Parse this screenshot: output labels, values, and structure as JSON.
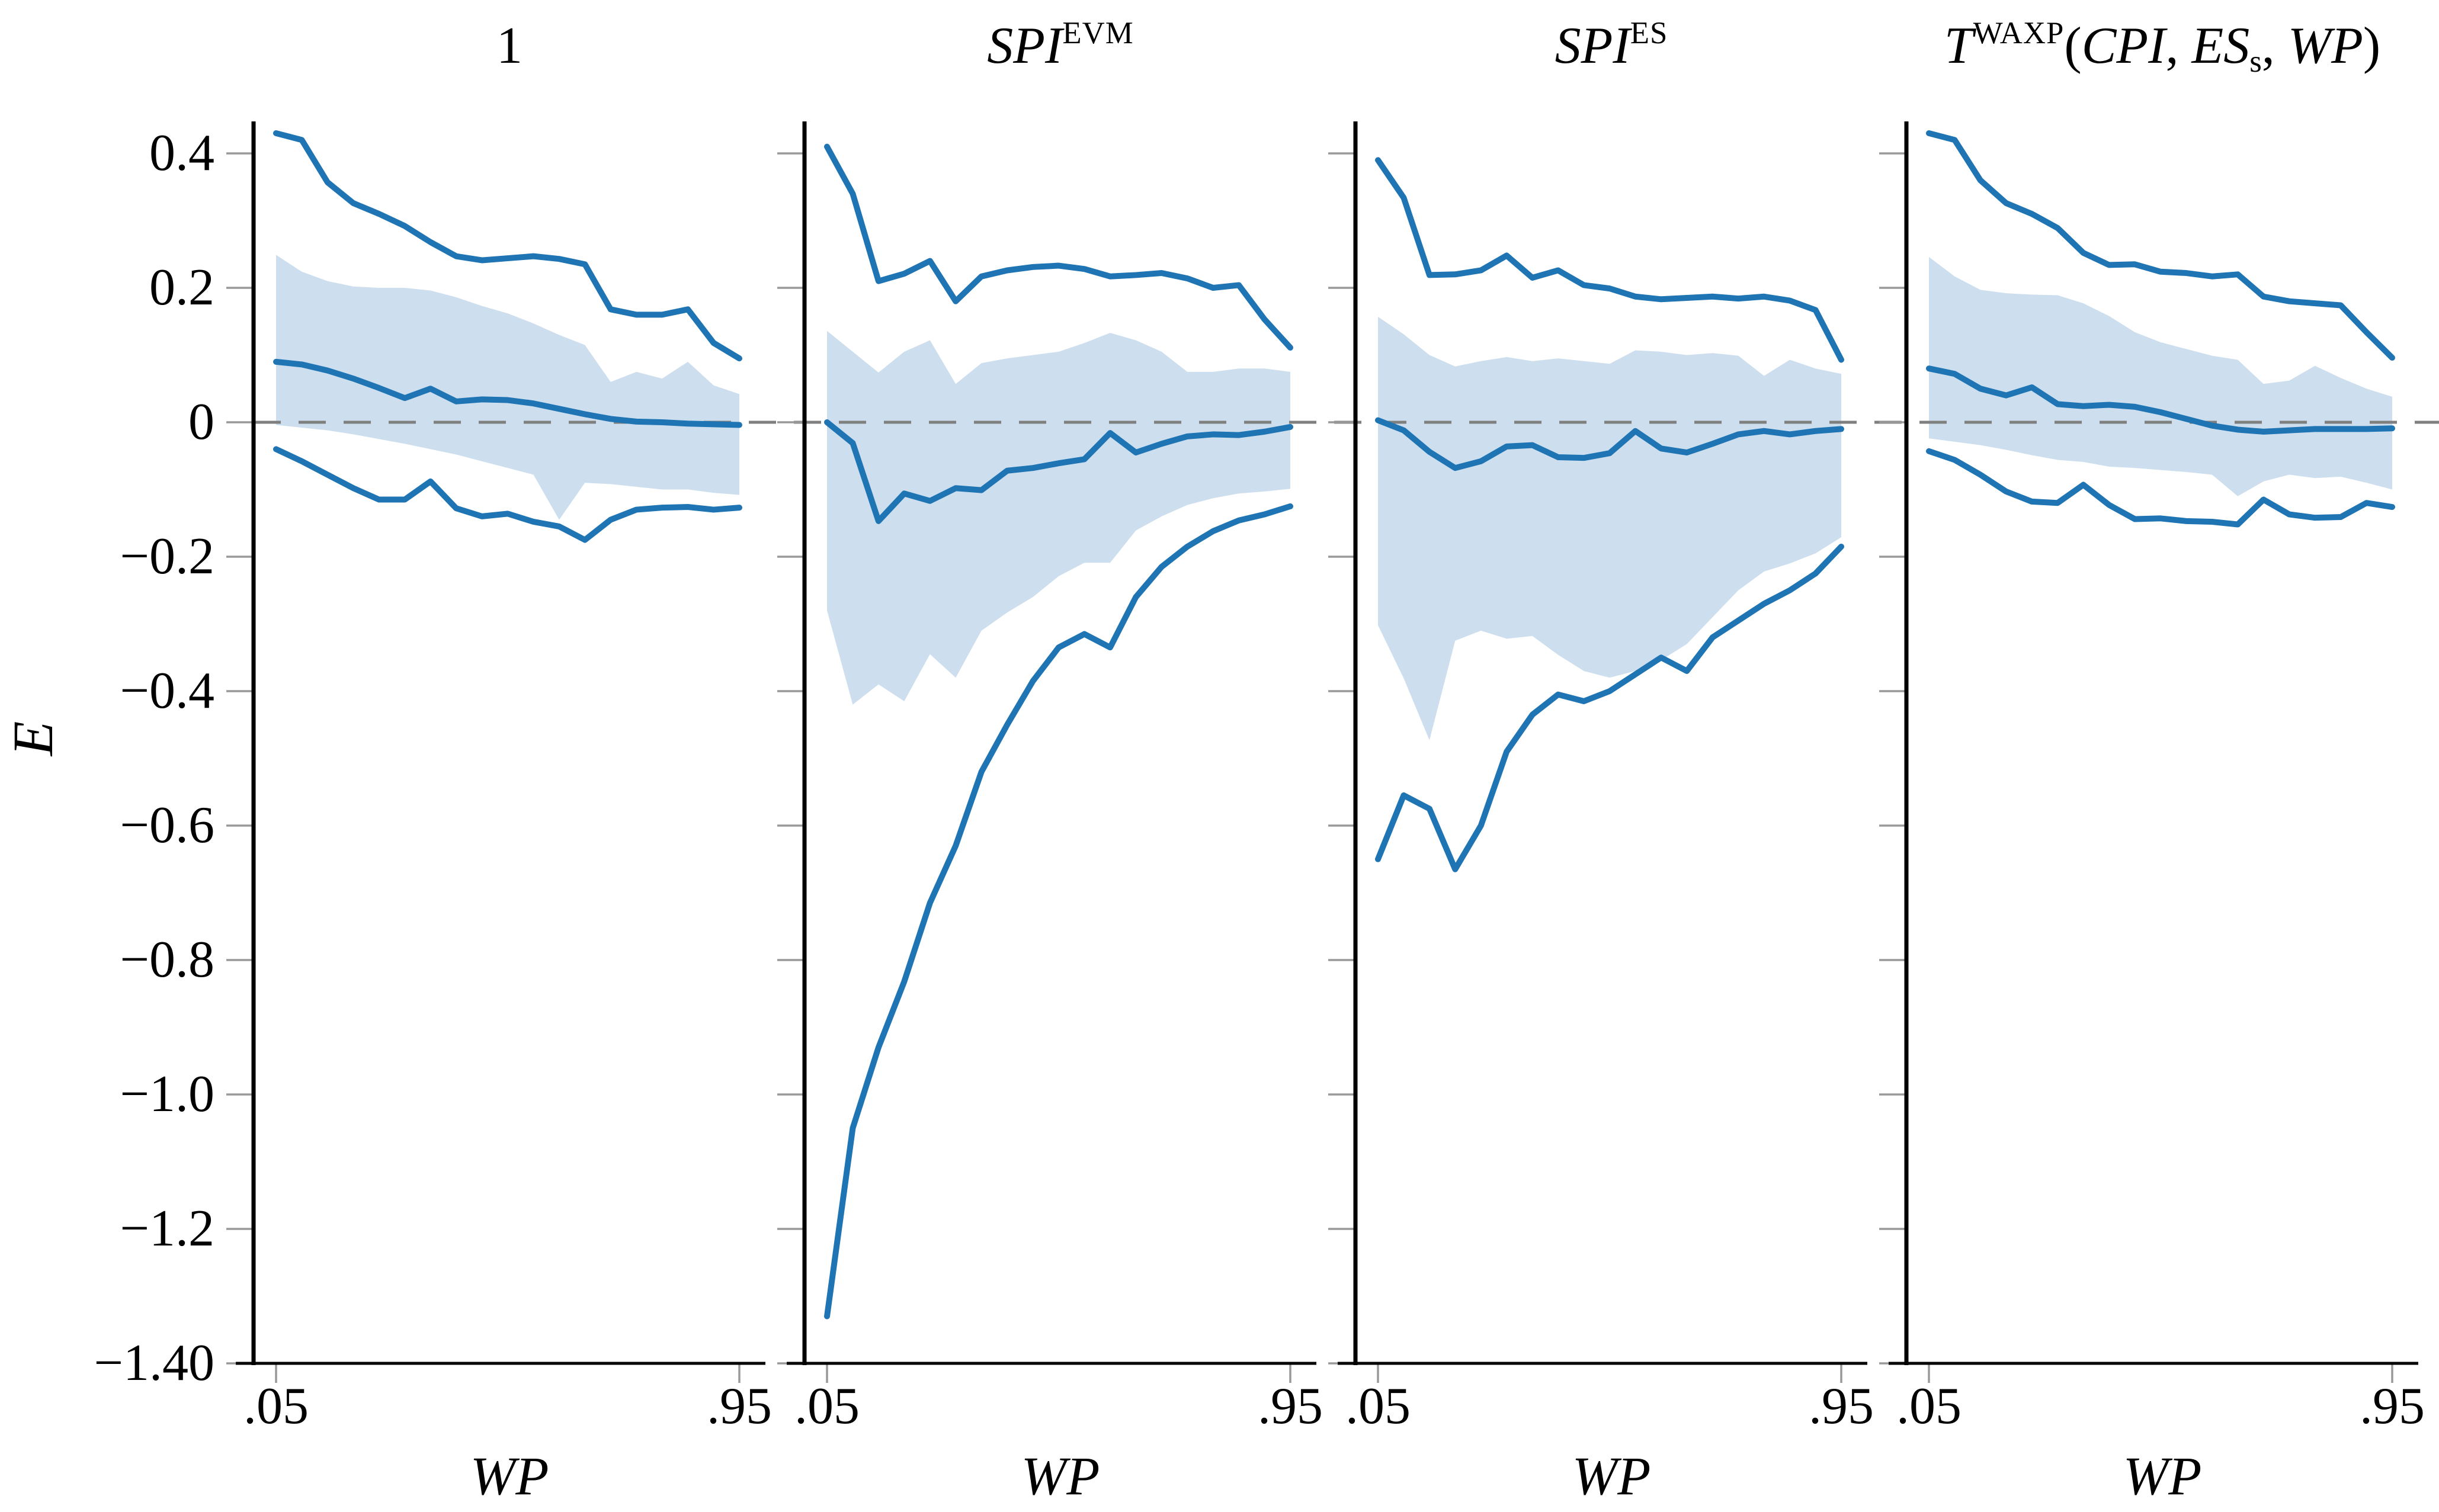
{
  "figure": {
    "ylabel": "E",
    "xlabel": "WP",
    "colors": {
      "line_blue": "#1f74b4",
      "band_blue": "#cddfee",
      "zero_dash_gray": "#7f7f7f",
      "tick_gray": "#999999",
      "axis_black": "#000000",
      "background": "#ffffff"
    },
    "y_ticks": [
      {
        "value": 0.4,
        "label": "0.4"
      },
      {
        "value": 0.2,
        "label": "0.2"
      },
      {
        "value": 0.0,
        "label": "0"
      },
      {
        "value": -0.2,
        "label": "−0.2"
      },
      {
        "value": -0.4,
        "label": "−0.4"
      },
      {
        "value": -0.6,
        "label": "−0.6"
      },
      {
        "value": -0.8,
        "label": "−0.8"
      },
      {
        "value": -1.0,
        "label": "−1.0"
      },
      {
        "value": -1.2,
        "label": "−1.2"
      },
      {
        "value": -1.4,
        "label": "−1.40"
      }
    ],
    "x_ticks": [
      {
        "value": 0.05,
        "label": ".05"
      },
      {
        "value": 0.95,
        "label": ".95"
      }
    ]
  },
  "chart_data": [
    {
      "type": "line",
      "title_parts": [
        {
          "text": "1",
          "style": "rm"
        }
      ],
      "xlabel": "WP",
      "ylim": [
        -1.45,
        0.45
      ],
      "xlim": [
        0.04,
        1.0
      ],
      "grid": "off",
      "legend": "none",
      "x": [
        0.05,
        0.1,
        0.15,
        0.2,
        0.25,
        0.3,
        0.35,
        0.4,
        0.45,
        0.5,
        0.55,
        0.6,
        0.65,
        0.7,
        0.75,
        0.8,
        0.85,
        0.9,
        0.95
      ],
      "series": [
        {
          "name": "upper-bound-line",
          "values": [
            0.43,
            0.42,
            0.357,
            0.326,
            0.31,
            0.292,
            0.268,
            0.247,
            0.241,
            0.244,
            0.247,
            0.243,
            0.235,
            0.168,
            0.16,
            0.16,
            0.168,
            0.118,
            0.095
          ]
        },
        {
          "name": "mean-line",
          "values": [
            0.09,
            0.086,
            0.077,
            0.065,
            0.051,
            0.036,
            0.05,
            0.031,
            0.034,
            0.033,
            0.028,
            0.02,
            0.012,
            0.005,
            0.001,
            0.0,
            -0.002,
            -0.003,
            -0.004
          ]
        },
        {
          "name": "lower-bound-line",
          "values": [
            -0.04,
            -0.058,
            -0.078,
            -0.098,
            -0.115,
            -0.115,
            -0.088,
            -0.128,
            -0.14,
            -0.136,
            -0.148,
            -0.155,
            -0.175,
            -0.145,
            -0.13,
            -0.127,
            -0.126,
            -0.13,
            -0.127
          ]
        }
      ],
      "band": {
        "name": "confidence-band",
        "hi": [
          0.249,
          0.224,
          0.21,
          0.202,
          0.2,
          0.2,
          0.196,
          0.186,
          0.173,
          0.162,
          0.147,
          0.13,
          0.115,
          0.06,
          0.075,
          0.065,
          0.09,
          0.055,
          0.042
        ],
        "lo": [
          -0.004,
          -0.008,
          -0.012,
          -0.018,
          -0.025,
          -0.032,
          -0.04,
          -0.048,
          -0.058,
          -0.068,
          -0.078,
          -0.145,
          -0.09,
          -0.092,
          -0.096,
          -0.1,
          -0.1,
          -0.105,
          -0.108
        ]
      }
    },
    {
      "type": "line",
      "title_parts": [
        {
          "text": "SPI",
          "style": "it"
        },
        {
          "text": "EVM",
          "style": "sup"
        }
      ],
      "xlabel": "WP",
      "ylim": [
        -1.45,
        0.45
      ],
      "xlim": [
        0.04,
        1.0
      ],
      "grid": "off",
      "legend": "none",
      "x": [
        0.05,
        0.1,
        0.15,
        0.2,
        0.25,
        0.3,
        0.35,
        0.4,
        0.45,
        0.5,
        0.55,
        0.6,
        0.65,
        0.7,
        0.75,
        0.8,
        0.85,
        0.9,
        0.95
      ],
      "series": [
        {
          "name": "upper-bound-line",
          "values": [
            0.41,
            0.34,
            0.21,
            0.221,
            0.24,
            0.18,
            0.217,
            0.226,
            0.231,
            0.233,
            0.228,
            0.217,
            0.219,
            0.222,
            0.214,
            0.2,
            0.204,
            0.153,
            0.111
          ]
        },
        {
          "name": "mean-line",
          "values": [
            0.0,
            -0.031,
            -0.147,
            -0.106,
            -0.117,
            -0.098,
            -0.101,
            -0.072,
            -0.068,
            -0.061,
            -0.055,
            -0.016,
            -0.045,
            -0.032,
            -0.021,
            -0.018,
            -0.019,
            -0.014,
            -0.007
          ]
        },
        {
          "name": "lower-bound-line",
          "values": [
            -1.33,
            -1.05,
            -0.93,
            -0.832,
            -0.715,
            -0.63,
            -0.52,
            -0.45,
            -0.385,
            -0.335,
            -0.315,
            -0.335,
            -0.26,
            -0.215,
            -0.185,
            -0.162,
            -0.146,
            -0.137,
            -0.125
          ]
        }
      ],
      "band": {
        "name": "confidence-band",
        "hi": [
          0.136,
          0.105,
          0.074,
          0.105,
          0.122,
          0.057,
          0.088,
          0.095,
          0.1,
          0.105,
          0.118,
          0.133,
          0.122,
          0.105,
          0.075,
          0.075,
          0.08,
          0.08,
          0.075
        ],
        "lo": [
          -0.28,
          -0.42,
          -0.39,
          -0.415,
          -0.345,
          -0.38,
          -0.31,
          -0.283,
          -0.26,
          -0.229,
          -0.209,
          -0.209,
          -0.161,
          -0.14,
          -0.123,
          -0.113,
          -0.106,
          -0.103,
          -0.099
        ]
      }
    },
    {
      "type": "line",
      "title_parts": [
        {
          "text": "SPI",
          "style": "it"
        },
        {
          "text": "ES",
          "style": "sup"
        }
      ],
      "xlabel": "WP",
      "ylim": [
        -1.45,
        0.45
      ],
      "xlim": [
        0.04,
        1.0
      ],
      "grid": "off",
      "legend": "none",
      "x": [
        0.05,
        0.1,
        0.15,
        0.2,
        0.25,
        0.3,
        0.35,
        0.4,
        0.45,
        0.5,
        0.55,
        0.6,
        0.65,
        0.7,
        0.75,
        0.8,
        0.85,
        0.9,
        0.95
      ],
      "series": [
        {
          "name": "upper-bound-line",
          "values": [
            0.39,
            0.334,
            0.219,
            0.22,
            0.226,
            0.248,
            0.215,
            0.226,
            0.204,
            0.199,
            0.187,
            0.183,
            0.185,
            0.187,
            0.184,
            0.187,
            0.181,
            0.167,
            0.093
          ]
        },
        {
          "name": "mean-line",
          "values": [
            0.003,
            -0.012,
            -0.044,
            -0.068,
            -0.058,
            -0.036,
            -0.034,
            -0.052,
            -0.053,
            -0.046,
            -0.013,
            -0.039,
            -0.045,
            -0.032,
            -0.018,
            -0.013,
            -0.018,
            -0.013,
            -0.01
          ]
        },
        {
          "name": "lower-bound-line",
          "values": [
            -0.65,
            -0.555,
            -0.575,
            -0.665,
            -0.6,
            -0.49,
            -0.435,
            -0.405,
            -0.415,
            -0.4,
            -0.375,
            -0.35,
            -0.37,
            -0.32,
            -0.295,
            -0.27,
            -0.25,
            -0.225,
            -0.185
          ]
        }
      ],
      "band": {
        "name": "confidence-band",
        "hi": [
          0.157,
          0.131,
          0.1,
          0.083,
          0.091,
          0.097,
          0.091,
          0.095,
          0.091,
          0.087,
          0.107,
          0.105,
          0.1,
          0.103,
          0.099,
          0.069,
          0.093,
          0.08,
          0.072
        ],
        "lo": [
          -0.302,
          -0.381,
          -0.473,
          -0.325,
          -0.31,
          -0.322,
          -0.318,
          -0.346,
          -0.37,
          -0.38,
          -0.37,
          -0.354,
          -0.33,
          -0.29,
          -0.25,
          -0.222,
          -0.21,
          -0.195,
          -0.171
        ]
      }
    },
    {
      "type": "line",
      "title_parts": [
        {
          "text": "T",
          "style": "it"
        },
        {
          "text": "WAXP",
          "style": "sup"
        },
        {
          "text": "(",
          "style": "rm"
        },
        {
          "text": "CPI",
          "style": "it"
        },
        {
          "text": ", ",
          "style": "rm"
        },
        {
          "text": "ES",
          "style": "it"
        },
        {
          "text": "s",
          "style": "sub"
        },
        {
          "text": ", ",
          "style": "rm"
        },
        {
          "text": "WP",
          "style": "it"
        },
        {
          "text": ")",
          "style": "rm"
        }
      ],
      "xlabel": "WP",
      "ylim": [
        -1.45,
        0.45
      ],
      "xlim": [
        0.04,
        1.0
      ],
      "grid": "off",
      "legend": "none",
      "x": [
        0.05,
        0.1,
        0.15,
        0.2,
        0.25,
        0.3,
        0.35,
        0.4,
        0.45,
        0.5,
        0.55,
        0.6,
        0.65,
        0.7,
        0.75,
        0.8,
        0.85,
        0.9,
        0.95
      ],
      "series": [
        {
          "name": "upper-bound-line",
          "values": [
            0.43,
            0.42,
            0.36,
            0.326,
            0.31,
            0.289,
            0.252,
            0.234,
            0.235,
            0.224,
            0.222,
            0.217,
            0.22,
            0.187,
            0.18,
            0.177,
            0.174,
            0.134,
            0.096
          ]
        },
        {
          "name": "mean-line",
          "values": [
            0.08,
            0.072,
            0.05,
            0.04,
            0.052,
            0.027,
            0.024,
            0.026,
            0.023,
            0.015,
            0.005,
            -0.005,
            -0.011,
            -0.014,
            -0.012,
            -0.01,
            -0.01,
            -0.01,
            -0.009
          ]
        },
        {
          "name": "lower-bound-line",
          "values": [
            -0.043,
            -0.056,
            -0.078,
            -0.103,
            -0.118,
            -0.12,
            -0.093,
            -0.123,
            -0.144,
            -0.143,
            -0.147,
            -0.148,
            -0.152,
            -0.115,
            -0.137,
            -0.142,
            -0.141,
            -0.12,
            -0.126
          ]
        }
      ],
      "band": {
        "name": "confidence-band",
        "hi": [
          0.246,
          0.217,
          0.197,
          0.192,
          0.19,
          0.189,
          0.177,
          0.158,
          0.134,
          0.119,
          0.109,
          0.099,
          0.093,
          0.057,
          0.062,
          0.084,
          0.066,
          0.05,
          0.038
        ],
        "lo": [
          -0.024,
          -0.029,
          -0.034,
          -0.041,
          -0.049,
          -0.056,
          -0.059,
          -0.066,
          -0.068,
          -0.071,
          -0.074,
          -0.078,
          -0.11,
          -0.088,
          -0.078,
          -0.083,
          -0.081,
          -0.09,
          -0.1
        ]
      }
    }
  ]
}
